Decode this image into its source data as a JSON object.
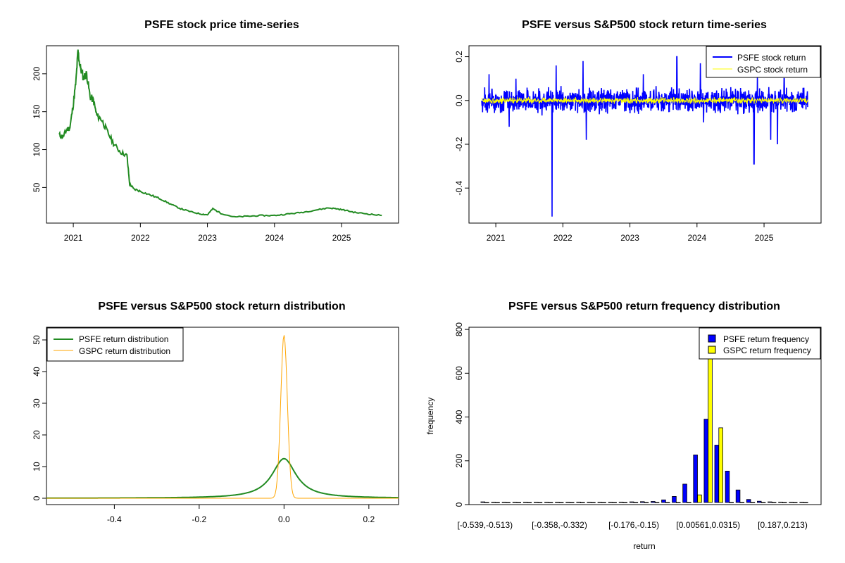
{
  "chart_data": [
    {
      "type": "line",
      "title": "PSFE stock price time-series",
      "xlabel": "",
      "ylabel": "",
      "x_ticks": [
        "2021",
        "2022",
        "2023",
        "2024",
        "2025"
      ],
      "y_ticks": [
        50,
        100,
        150,
        200
      ],
      "xlim": [
        2020.6,
        2025.85
      ],
      "ylim": [
        3,
        237
      ],
      "series": [
        {
          "color": "#228B22",
          "points": [
            [
              2020.79,
              119
            ],
            [
              2020.85,
              117
            ],
            [
              2020.9,
              126
            ],
            [
              2020.95,
              129
            ],
            [
              2021.0,
              160
            ],
            [
              2021.04,
              190
            ],
            [
              2021.07,
              230
            ],
            [
              2021.1,
              210
            ],
            [
              2021.15,
              195
            ],
            [
              2021.2,
              200
            ],
            [
              2021.25,
              170
            ],
            [
              2021.3,
              165
            ],
            [
              2021.35,
              145
            ],
            [
              2021.42,
              140
            ],
            [
              2021.5,
              125
            ],
            [
              2021.6,
              108
            ],
            [
              2021.7,
              97
            ],
            [
              2021.8,
              92
            ],
            [
              2021.84,
              55
            ],
            [
              2021.9,
              48
            ],
            [
              2022.0,
              45
            ],
            [
              2022.15,
              40
            ],
            [
              2022.3,
              35
            ],
            [
              2022.45,
              28
            ],
            [
              2022.6,
              22
            ],
            [
              2022.75,
              18
            ],
            [
              2022.9,
              15
            ],
            [
              2023.0,
              14
            ],
            [
              2023.08,
              22
            ],
            [
              2023.2,
              16
            ],
            [
              2023.4,
              11
            ],
            [
              2023.6,
              12
            ],
            [
              2023.8,
              13
            ],
            [
              2024.0,
              13
            ],
            [
              2024.2,
              15
            ],
            [
              2024.4,
              17
            ],
            [
              2024.6,
              20
            ],
            [
              2024.8,
              23
            ],
            [
              2024.92,
              22
            ],
            [
              2025.05,
              20
            ],
            [
              2025.2,
              17
            ],
            [
              2025.4,
              15
            ],
            [
              2025.6,
              13
            ]
          ]
        }
      ]
    },
    {
      "type": "line",
      "title": "PSFE versus S&P500 stock return time-series",
      "xlabel": "",
      "ylabel": "",
      "x_ticks": [
        "2021",
        "2022",
        "2023",
        "2024",
        "2025"
      ],
      "y_ticks": [
        0.2,
        0.0,
        -0.2,
        -0.4
      ],
      "xlim": [
        2020.6,
        2025.85
      ],
      "ylim": [
        -0.56,
        0.25
      ],
      "legend": "top-right",
      "series": [
        {
          "name": "PSFE stock return",
          "color": "#0000FF",
          "amplitude": 0.05,
          "spikes": [
            [
              2020.9,
              0.12
            ],
            [
              2021.2,
              -0.12
            ],
            [
              2021.3,
              0.1
            ],
            [
              2021.84,
              -0.53
            ],
            [
              2021.9,
              0.16
            ],
            [
              2022.3,
              0.18
            ],
            [
              2022.35,
              -0.18
            ],
            [
              2023.2,
              0.12
            ],
            [
              2023.7,
              0.2
            ],
            [
              2024.05,
              0.17
            ],
            [
              2024.1,
              -0.1
            ],
            [
              2024.85,
              -0.29
            ],
            [
              2024.9,
              0.12
            ],
            [
              2025.1,
              -0.18
            ],
            [
              2025.2,
              -0.2
            ],
            [
              2025.3,
              0.1
            ]
          ]
        },
        {
          "name": "GSPC stock return",
          "color": "#FFFF00",
          "amplitude": 0.012,
          "spikes": []
        }
      ]
    },
    {
      "type": "line",
      "title": "PSFE versus S&P500 stock return distribution",
      "xlabel": "",
      "ylabel": "",
      "x_ticks": [
        -0.4,
        -0.2,
        0.0,
        0.2
      ],
      "y_ticks": [
        0,
        10,
        20,
        30,
        40,
        50
      ],
      "xlim": [
        -0.56,
        0.27
      ],
      "ylim": [
        -2,
        54
      ],
      "legend": "top-left",
      "series": [
        {
          "name": "PSFE return distribution",
          "color": "#228B22",
          "peak": 12.5,
          "mu": 0.0,
          "sd": 0.033
        },
        {
          "name": "GSPC return distribution",
          "color": "#FFA500",
          "peak": 51.5,
          "mu": 0.0,
          "sd": 0.0078
        }
      ]
    },
    {
      "type": "bar",
      "title": "PSFE versus S&P500 return frequency distribution",
      "xlabel": "return",
      "ylabel": "frequency",
      "x_ticks": [
        "[-0.539,-0.513)",
        "[-0.358,-0.332)",
        "[-0.176,-0.15)",
        "[0.00561,0.0315)",
        "[0.187,0.213)"
      ],
      "y_ticks": [
        0,
        200,
        400,
        600,
        800
      ],
      "ylim": [
        0,
        810
      ],
      "legend": "top-right",
      "series": [
        {
          "name": "PSFE return frequency",
          "color": "#0000FF",
          "values": [
            3,
            1,
            1,
            1,
            1,
            1,
            1,
            1,
            1,
            2,
            1,
            1,
            1,
            2,
            3,
            4,
            5,
            12,
            28,
            85,
            220,
            385,
            265,
            145,
            58,
            14,
            6,
            3,
            2,
            1,
            1
          ]
        },
        {
          "name": "GSPC return frequency",
          "color": "#FFFF00",
          "values": [
            0,
            0,
            0,
            0,
            0,
            0,
            0,
            0,
            0,
            0,
            0,
            0,
            0,
            0,
            0,
            0,
            0,
            0,
            0,
            0,
            35,
            800,
            345,
            0,
            0,
            0,
            0,
            0,
            0,
            0,
            0
          ]
        }
      ]
    }
  ]
}
